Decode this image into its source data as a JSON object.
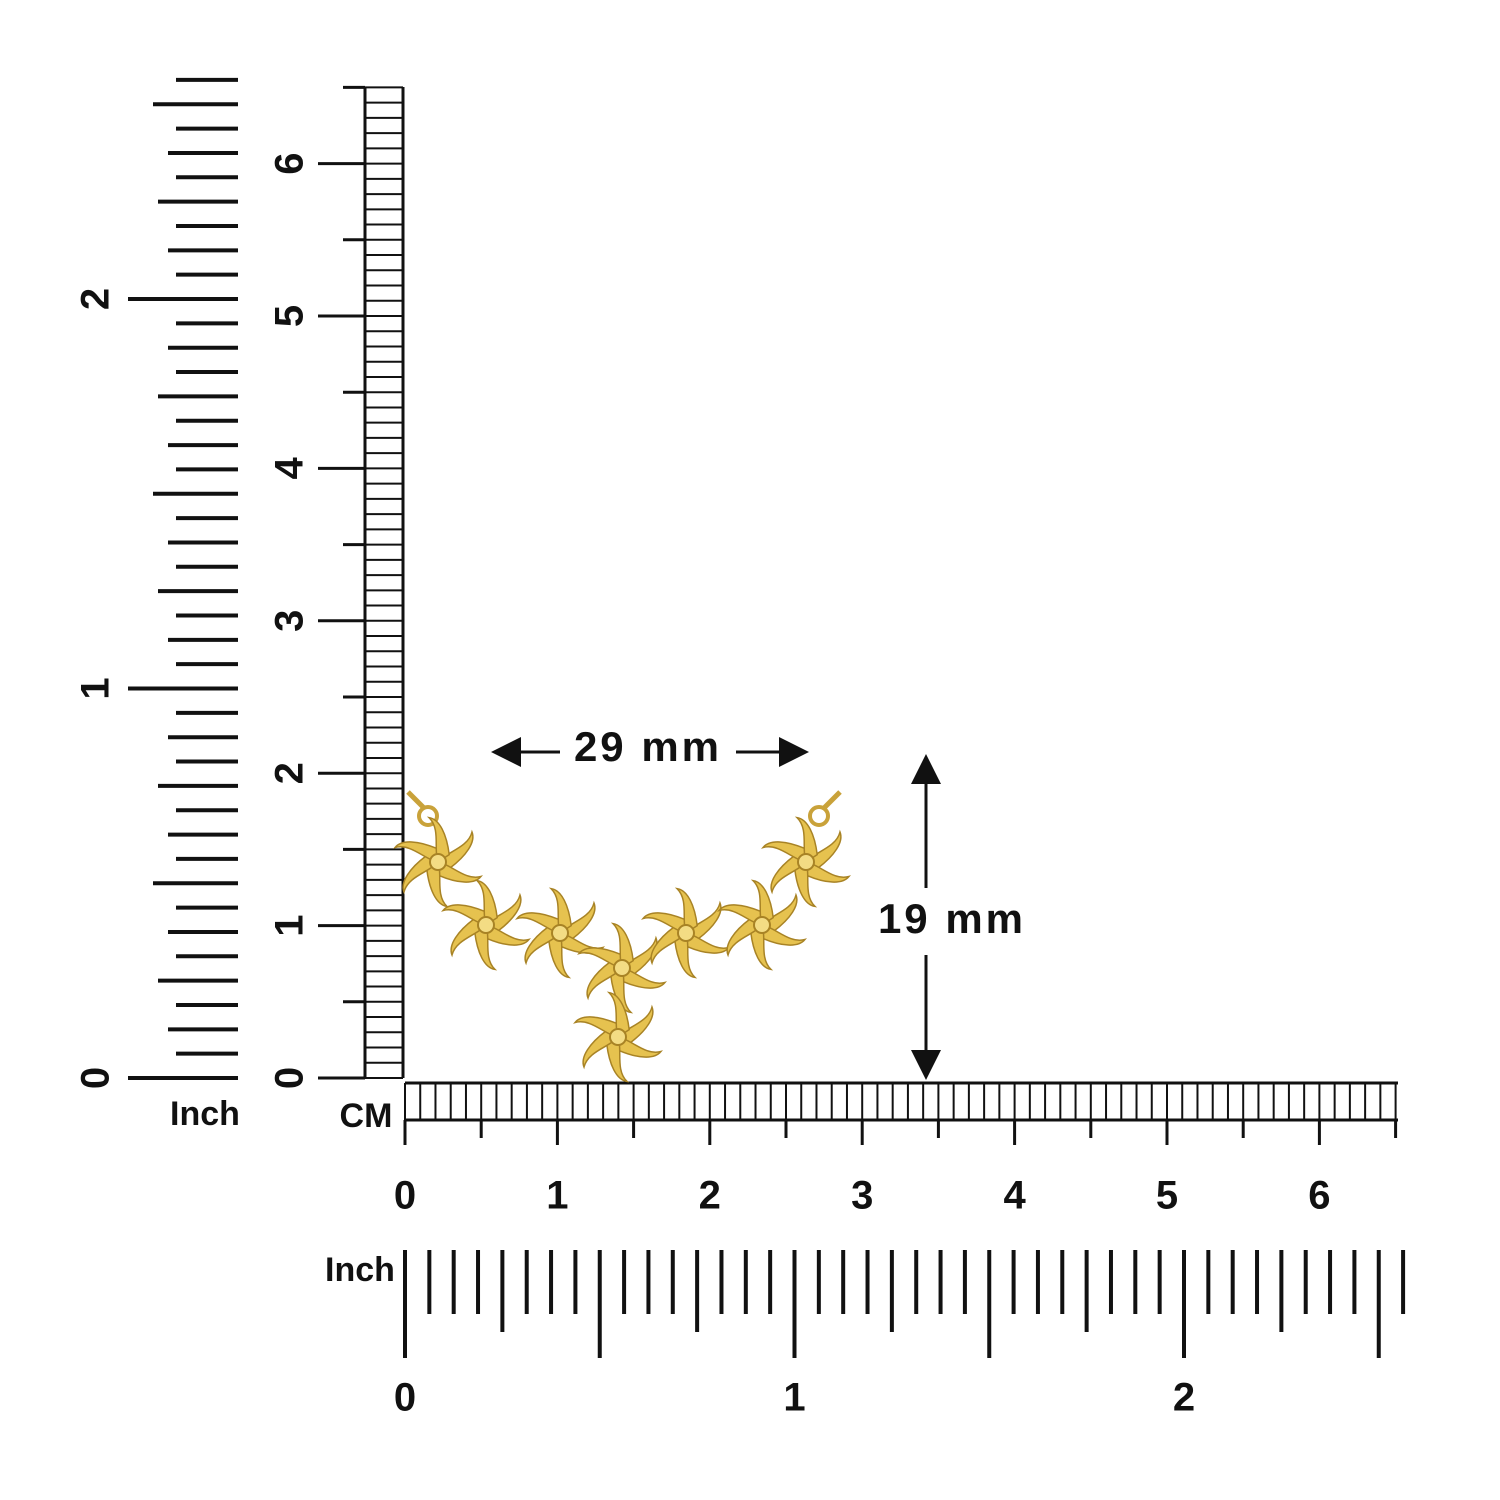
{
  "left_ruler": {
    "inch_label": "Inch",
    "inch_numbers": [
      "0",
      "1",
      "2"
    ],
    "cm_numbers": [
      "0",
      "1",
      "2",
      "3",
      "4",
      "5",
      "6"
    ]
  },
  "bottom_ruler": {
    "cm_label": "CM",
    "cm_numbers": [
      "0",
      "1",
      "2",
      "3",
      "4",
      "5",
      "6"
    ],
    "inch_label": "Inch",
    "inch_numbers": [
      "0",
      "1",
      "2"
    ]
  },
  "dimensions": {
    "width": "29 mm",
    "height": "19 mm"
  }
}
